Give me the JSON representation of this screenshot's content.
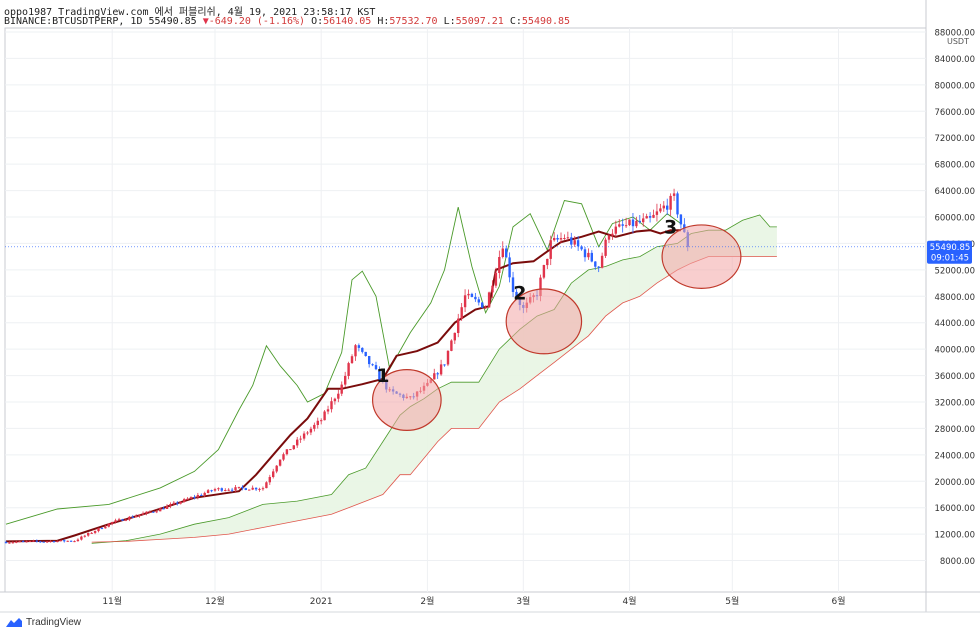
{
  "header": {
    "line1": "oppo1987 TradingView.com 에서 퍼블리쉬, 4월 19, 2021 23:58:17 KST",
    "symbol": "BINANCE:BTCUSDTPERP, 1D",
    "last": "55490.85",
    "arrow": "▼",
    "change": "-649.20 (-1.16%)",
    "o_label": "O:",
    "o_val": "56140.05",
    "h_label": "H:",
    "h_val": "57532.70",
    "l_label": "L:",
    "l_val": "55097.21",
    "c_label": "C:",
    "c_val": "55490.85"
  },
  "axis": {
    "currency": "USDT",
    "price_tag": "55490.85",
    "countdown": "09:01:45"
  },
  "footer": {
    "brand": "TradingView"
  },
  "annotations": [
    "1",
    "2",
    "3"
  ],
  "colors": {
    "up": "#e0344b",
    "down": "#2962ff",
    "kijun": "#7a0c0c",
    "span_a": "#4a9a2a",
    "span_b": "#e0554b",
    "cloud": "#e8f5e3",
    "circle_fill": "#f3a6a6",
    "circle_stroke": "#c0392b",
    "tag": "#2962ff"
  },
  "chart_data": {
    "type": "candlestick",
    "ytick_labels": [
      "88000.00",
      "84000.00",
      "80000.00",
      "76000.00",
      "72000.00",
      "68000.00",
      "64000.00",
      "60000.00",
      "56000.00",
      "52000.00",
      "48000.00",
      "44000.00",
      "40000.00",
      "36000.00",
      "32000.00",
      "28000.00",
      "24000.00",
      "20000.00",
      "16000.00",
      "12000.00",
      "8000.00"
    ],
    "xtick_labels": [
      "11월",
      "12월",
      "2021",
      "2월",
      "3월",
      "4월",
      "5월",
      "6월"
    ],
    "ylim": [
      4000,
      88000
    ],
    "last_close": 55490.85,
    "month_ticks": [
      {
        "label": "11월",
        "day": 31
      },
      {
        "label": "12월",
        "day": 61
      },
      {
        "label": "2021",
        "day": 92
      },
      {
        "label": "2월",
        "day": 123
      },
      {
        "label": "3월",
        "day": 151
      },
      {
        "label": "4월",
        "day": 182
      },
      {
        "label": "5월",
        "day": 212
      },
      {
        "label": "6월",
        "day": 243
      }
    ],
    "price_path": [
      [
        0,
        10800
      ],
      [
        20,
        11000
      ],
      [
        31,
        13800
      ],
      [
        45,
        15800
      ],
      [
        61,
        18800
      ],
      [
        75,
        19000
      ],
      [
        80,
        23500
      ],
      [
        88,
        27500
      ],
      [
        92,
        29300
      ],
      [
        98,
        34500
      ],
      [
        102,
        40500
      ],
      [
        108,
        36500
      ],
      [
        112,
        33500
      ],
      [
        118,
        32500
      ],
      [
        123,
        34500
      ],
      [
        128,
        38000
      ],
      [
        134,
        48000
      ],
      [
        140,
        46500
      ],
      [
        145,
        56000
      ],
      [
        148,
        49000
      ],
      [
        151,
        46000
      ],
      [
        155,
        48500
      ],
      [
        159,
        56000
      ],
      [
        163,
        57000
      ],
      [
        168,
        55000
      ],
      [
        173,
        52500
      ],
      [
        176,
        57800
      ],
      [
        182,
        58800
      ],
      [
        188,
        59500
      ],
      [
        192,
        61500
      ],
      [
        195,
        62800
      ],
      [
        197,
        59000
      ],
      [
        199,
        55490
      ]
    ],
    "tenkan_path": [
      [
        0,
        13500
      ],
      [
        15,
        15800
      ],
      [
        30,
        16500
      ],
      [
        45,
        19000
      ],
      [
        55,
        21500
      ],
      [
        62,
        24800
      ],
      [
        68,
        30800
      ],
      [
        72,
        34500
      ],
      [
        76,
        40500
      ],
      [
        80,
        37500
      ],
      [
        85,
        34500
      ],
      [
        88,
        32000
      ],
      [
        93,
        33300
      ],
      [
        98,
        39500
      ],
      [
        101,
        50500
      ],
      [
        104,
        51800
      ],
      [
        108,
        48000
      ],
      [
        112,
        37000
      ],
      [
        118,
        42500
      ],
      [
        124,
        47000
      ],
      [
        128,
        52000
      ],
      [
        132,
        61500
      ],
      [
        136,
        52500
      ],
      [
        140,
        45500
      ],
      [
        144,
        49500
      ],
      [
        148,
        58500
      ],
      [
        153,
        60500
      ],
      [
        158,
        55000
      ],
      [
        163,
        62500
      ],
      [
        168,
        62000
      ],
      [
        173,
        55500
      ],
      [
        177,
        59000
      ],
      [
        183,
        60000
      ],
      [
        188,
        58000
      ],
      [
        193,
        60500
      ],
      [
        197,
        59000
      ]
    ],
    "kijun_path": [
      [
        0,
        10900
      ],
      [
        15,
        11000
      ],
      [
        20,
        11800
      ],
      [
        30,
        13500
      ],
      [
        40,
        15000
      ],
      [
        55,
        17500
      ],
      [
        68,
        18500
      ],
      [
        73,
        21000
      ],
      [
        78,
        24000
      ],
      [
        83,
        27000
      ],
      [
        88,
        29500
      ],
      [
        94,
        34000
      ],
      [
        98,
        34000
      ],
      [
        104,
        34700
      ],
      [
        110,
        35500
      ],
      [
        114,
        39000
      ],
      [
        120,
        39700
      ],
      [
        126,
        41000
      ],
      [
        131,
        44000
      ],
      [
        137,
        46000
      ],
      [
        141,
        46500
      ],
      [
        143,
        52000
      ],
      [
        148,
        53000
      ],
      [
        154,
        53300
      ],
      [
        158,
        54800
      ],
      [
        162,
        56200
      ],
      [
        168,
        57000
      ],
      [
        173,
        57800
      ],
      [
        178,
        57000
      ],
      [
        184,
        57800
      ],
      [
        188,
        58000
      ],
      [
        191,
        57500
      ],
      [
        194,
        58000
      ],
      [
        197,
        58000
      ]
    ],
    "span_a_path": [
      [
        25,
        10600
      ],
      [
        35,
        11000
      ],
      [
        45,
        12000
      ],
      [
        55,
        13500
      ],
      [
        65,
        14500
      ],
      [
        75,
        16500
      ],
      [
        85,
        17000
      ],
      [
        95,
        18000
      ],
      [
        100,
        21000
      ],
      [
        105,
        22000
      ],
      [
        110,
        26000
      ],
      [
        115,
        30000
      ],
      [
        118,
        31300
      ],
      [
        122,
        32500
      ],
      [
        126,
        34000
      ],
      [
        130,
        35000
      ],
      [
        138,
        35000
      ],
      [
        144,
        40000
      ],
      [
        150,
        43000
      ],
      [
        155,
        45000
      ],
      [
        160,
        46000
      ],
      [
        165,
        50000
      ],
      [
        170,
        52000
      ],
      [
        175,
        52500
      ],
      [
        180,
        53500
      ],
      [
        185,
        54000
      ],
      [
        190,
        55500
      ],
      [
        196,
        56000
      ],
      [
        200,
        57500
      ],
      [
        205,
        58000
      ],
      [
        210,
        58000
      ],
      [
        215,
        59500
      ],
      [
        220,
        60300
      ],
      [
        223,
        58500
      ],
      [
        225,
        58500
      ]
    ],
    "span_b_path": [
      [
        25,
        10800
      ],
      [
        35,
        10900
      ],
      [
        45,
        11200
      ],
      [
        55,
        11500
      ],
      [
        65,
        12000
      ],
      [
        75,
        13000
      ],
      [
        85,
        14000
      ],
      [
        95,
        15000
      ],
      [
        100,
        16000
      ],
      [
        105,
        17000
      ],
      [
        110,
        18000
      ],
      [
        115,
        21000
      ],
      [
        118,
        21000
      ],
      [
        122,
        23500
      ],
      [
        126,
        26000
      ],
      [
        130,
        28000
      ],
      [
        138,
        28000
      ],
      [
        144,
        32000
      ],
      [
        150,
        34000
      ],
      [
        155,
        36000
      ],
      [
        160,
        38000
      ],
      [
        165,
        40000
      ],
      [
        170,
        42000
      ],
      [
        175,
        45000
      ],
      [
        180,
        47000
      ],
      [
        185,
        48000
      ],
      [
        190,
        50000
      ],
      [
        196,
        52000
      ],
      [
        200,
        53000
      ],
      [
        205,
        54000
      ],
      [
        210,
        54000
      ],
      [
        215,
        54000
      ],
      [
        220,
        54000
      ],
      [
        225,
        54000
      ]
    ],
    "annotation_points": [
      {
        "label": "1",
        "day": 110,
        "price": 35000
      },
      {
        "label": "2",
        "day": 150,
        "price": 47500
      },
      {
        "label": "3",
        "day": 194,
        "price": 57500
      }
    ],
    "highlight_circles": [
      {
        "day": 117,
        "price": 32300,
        "rx_days": 10,
        "ry_price": 4600
      },
      {
        "day": 157,
        "price": 44200,
        "rx_days": 11,
        "ry_price": 4900
      },
      {
        "day": 203,
        "price": 54000,
        "rx_days": 11.5,
        "ry_price": 4800
      }
    ]
  }
}
